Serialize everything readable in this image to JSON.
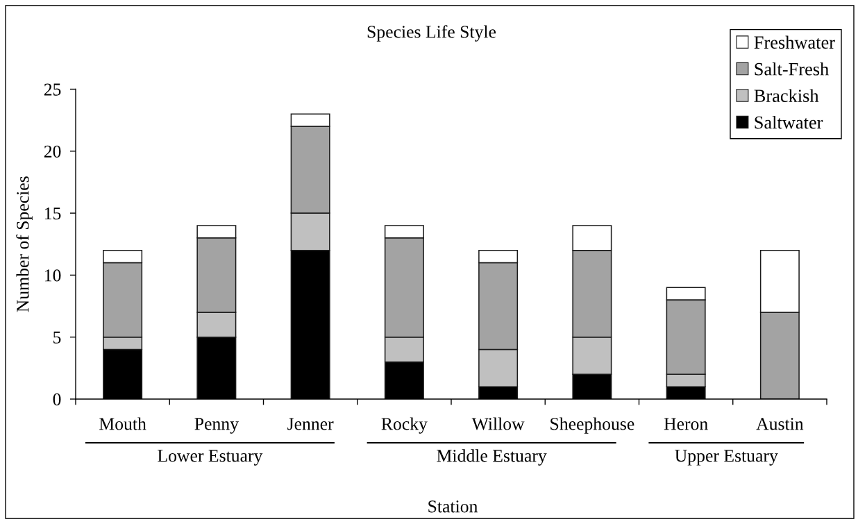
{
  "chart_data": {
    "type": "bar",
    "title": "Species Life Style",
    "xlabel": "Station",
    "ylabel": "Number of Species",
    "categories": [
      "Mouth",
      "Penny",
      "Jenner",
      "Rocky",
      "Willow",
      "Sheephouse",
      "Heron",
      "Austin"
    ],
    "series": [
      {
        "name": "Saltwater",
        "color": "#000000",
        "values": [
          4,
          5,
          12,
          3,
          1,
          2,
          1,
          0
        ]
      },
      {
        "name": "Brackish",
        "color": "#c0c0c0",
        "values": [
          1,
          2,
          3,
          2,
          3,
          3,
          1,
          0
        ]
      },
      {
        "name": "Salt-Fresh",
        "color": "#a3a3a3",
        "values": [
          6,
          6,
          7,
          8,
          7,
          7,
          6,
          7
        ]
      },
      {
        "name": "Freshwater",
        "color": "#ffffff",
        "values": [
          1,
          1,
          1,
          1,
          1,
          2,
          1,
          5
        ]
      }
    ],
    "stacked": true,
    "ylim": [
      0,
      25
    ],
    "yticks": [
      0,
      5,
      10,
      15,
      20,
      25
    ],
    "grid": false,
    "legend": "top right",
    "annotations": [
      "Lower Estuary",
      "Middle Estuary",
      "Upper Estuary"
    ]
  }
}
